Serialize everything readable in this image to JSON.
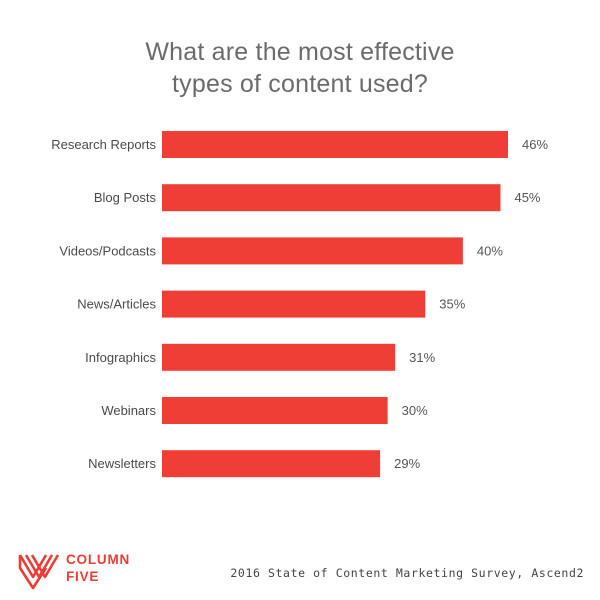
{
  "chart_data": {
    "type": "bar",
    "orientation": "horizontal",
    "title_lines": [
      "What are the most effective",
      "types of content used?"
    ],
    "categories": [
      "Research Reports",
      "Blog Posts",
      "Videos/Podcasts",
      "News/Articles",
      "Infographics",
      "Webinars",
      "Newsletters"
    ],
    "values": [
      46,
      45,
      40,
      35,
      31,
      30,
      29
    ],
    "value_labels": [
      "46%",
      "45%",
      "40%",
      "35%",
      "31%",
      "30%",
      "29%"
    ],
    "unit": "%",
    "xlim": [
      0,
      46
    ],
    "grid": false,
    "legend": "none",
    "bar_color": "#ef3e36"
  },
  "footer": {
    "logo_line1": "COLUMN",
    "logo_line2": "FIVE",
    "logo_icon": "column-five-logo-icon",
    "source": "2016 State of Content Marketing Survey, Ascend2"
  },
  "colors": {
    "accent": "#ef3e36",
    "title": "#6b6b6b"
  }
}
